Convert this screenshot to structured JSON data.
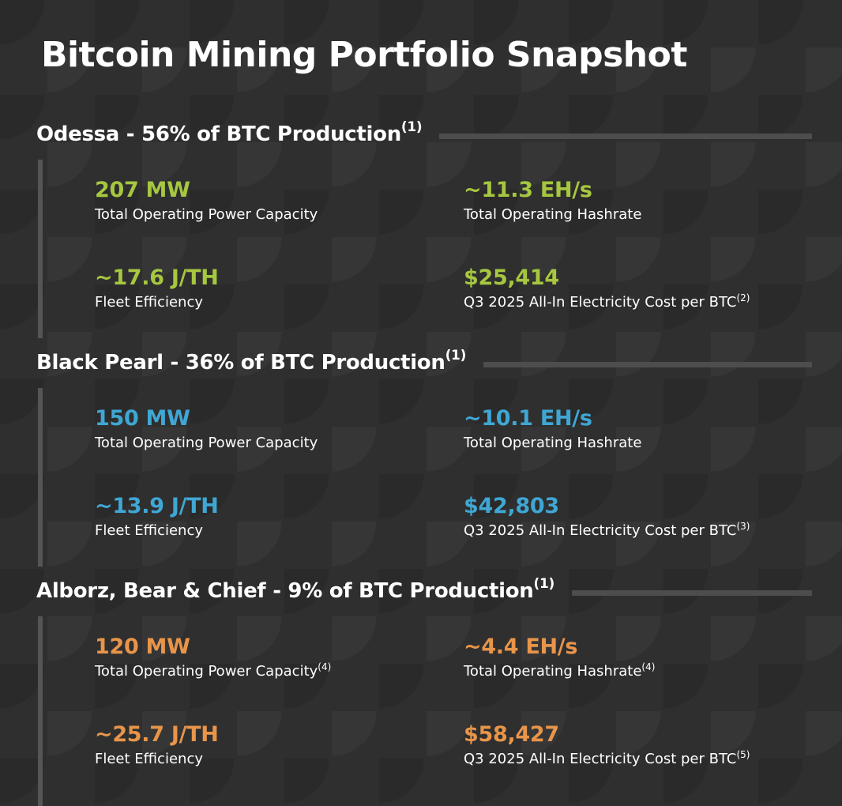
{
  "page": {
    "title": "Bitcoin Mining Portfolio Snapshot"
  },
  "colors": {
    "background": "#2f2f2f",
    "odessa_accent": "#a6c73f",
    "blackpearl_accent": "#3fa7d4",
    "alborz_accent": "#e8954a"
  },
  "sections": {
    "odessa": {
      "heading": "Odessa - 56% of BTC Production",
      "heading_note": "(1)",
      "accent": "#a6c73f",
      "metrics": {
        "power": {
          "value": "207 MW",
          "label": "Total Operating Power Capacity",
          "note": ""
        },
        "hashrate": {
          "value": "~11.3 EH/s",
          "label": "Total Operating Hashrate",
          "note": ""
        },
        "efficiency": {
          "value": "~17.6 J/TH",
          "label": "Fleet Efficiency",
          "note": ""
        },
        "cost": {
          "value": "$25,414",
          "label": "Q3 2025 All-In Electricity Cost per BTC",
          "note": "(2)"
        }
      }
    },
    "blackpearl": {
      "heading": "Black Pearl - 36% of BTC Production",
      "heading_note": "(1)",
      "accent": "#3fa7d4",
      "metrics": {
        "power": {
          "value": "150 MW",
          "label": "Total Operating Power Capacity",
          "note": ""
        },
        "hashrate": {
          "value": "~10.1 EH/s",
          "label": "Total Operating Hashrate",
          "note": ""
        },
        "efficiency": {
          "value": "~13.9 J/TH",
          "label": "Fleet Efficiency",
          "note": ""
        },
        "cost": {
          "value": "$42,803",
          "label": "Q3 2025 All-In Electricity Cost per BTC",
          "note": "(3)"
        }
      }
    },
    "alborz": {
      "heading": "Alborz, Bear & Chief - 9% of BTC Production",
      "heading_note": "(1)",
      "accent": "#e8954a",
      "metrics": {
        "power": {
          "value": "120 MW",
          "label": "Total Operating Power Capacity",
          "note": "(4)"
        },
        "hashrate": {
          "value": "~4.4 EH/s",
          "label": "Total Operating Hashrate",
          "note": "(4)"
        },
        "efficiency": {
          "value": "~25.7 J/TH",
          "label": "Fleet Efficiency",
          "note": ""
        },
        "cost": {
          "value": "$58,427",
          "label": "Q3 2025 All-In Electricity Cost per BTC",
          "note": "(5)"
        }
      }
    }
  }
}
